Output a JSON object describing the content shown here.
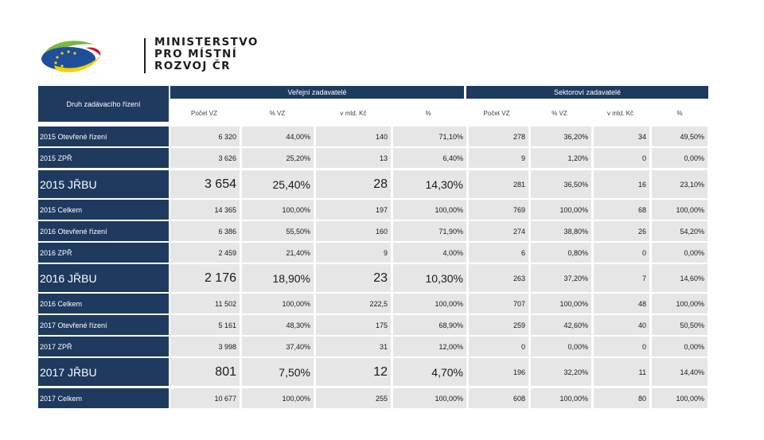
{
  "logo": {
    "lines": [
      "MINISTERSTVO",
      "PRO MÍSTNÍ",
      "ROZVOJ ČR"
    ],
    "colors": {
      "green": "#7ab648",
      "blue": "#1f4e9b",
      "yellow": "#f5d100",
      "red": "#c8102e"
    }
  },
  "header": {
    "corner_label": "Druh zadávacího řízení",
    "group_public": "Veřejní zadavatelé",
    "group_sector": "Sektoroví zadavatelé",
    "sub_public": [
      "Počet VZ",
      "% VZ",
      "v mld. Kč",
      "%"
    ],
    "sub_sector": [
      "Počet VZ",
      "% VZ",
      "v mld. Kč",
      "%"
    ]
  },
  "rows": [
    {
      "label": "2015 Otevřené řízení",
      "big": false,
      "public": [
        "6 320",
        "44,00%",
        "140",
        "71,10%"
      ],
      "sector": [
        "278",
        "36,20%",
        "34",
        "49,50%"
      ]
    },
    {
      "label": "2015 ZPŘ",
      "big": false,
      "public": [
        "3 626",
        "25,20%",
        "13",
        "6,40%"
      ],
      "sector": [
        "9",
        "1,20%",
        "0",
        "0,00%"
      ]
    },
    {
      "label": "2015 JŘBU",
      "big": true,
      "public": [
        "3 654",
        "25,40%",
        "28",
        "14,30%"
      ],
      "sector": [
        "281",
        "36,50%",
        "16",
        "23,10%"
      ]
    },
    {
      "label": "2015 Celkem",
      "big": false,
      "public": [
        "14 365",
        "100,00%",
        "197",
        "100,00%"
      ],
      "sector": [
        "769",
        "100,00%",
        "68",
        "100,00%"
      ]
    },
    {
      "label": "2016 Otevřené řízení",
      "big": false,
      "public": [
        "6 386",
        "55,50%",
        "160",
        "71,90%"
      ],
      "sector": [
        "274",
        "38,80%",
        "26",
        "54,20%"
      ]
    },
    {
      "label": "2016 ZPŘ",
      "big": false,
      "public": [
        "2 459",
        "21,40%",
        "9",
        "4,00%"
      ],
      "sector": [
        "6",
        "0,80%",
        "0",
        "0,00%"
      ]
    },
    {
      "label": "2016 JŘBU",
      "big": true,
      "public": [
        "2 176",
        "18,90%",
        "23",
        "10,30%"
      ],
      "sector": [
        "263",
        "37,20%",
        "7",
        "14,60%"
      ]
    },
    {
      "label": "2016 Celkem",
      "big": false,
      "public": [
        "11 502",
        "100,00%",
        "222,5",
        "100,00%"
      ],
      "sector": [
        "707",
        "100,00%",
        "48",
        "100,00%"
      ]
    },
    {
      "label": "2017 Otevřené řízení",
      "big": false,
      "public": [
        "5 161",
        "48,30%",
        "175",
        "68,90%"
      ],
      "sector": [
        "259",
        "42,60%",
        "40",
        "50,50%"
      ]
    },
    {
      "label": "2017 ZPŘ",
      "big": false,
      "public": [
        "3 998",
        "37,40%",
        "31",
        "12,00%"
      ],
      "sector": [
        "0",
        "0,00%",
        "0",
        "0,00%"
      ]
    },
    {
      "label": "2017 JŘBU",
      "big": true,
      "public": [
        "801",
        "7,50%",
        "12",
        "4,70%"
      ],
      "sector": [
        "196",
        "32,20%",
        "11",
        "14,40%"
      ]
    },
    {
      "label": "2017 Celkem",
      "big": false,
      "public": [
        "10 677",
        "100,00%",
        "255",
        "100,00%"
      ],
      "sector": [
        "608",
        "100,00%",
        "80",
        "100,00%"
      ]
    }
  ]
}
